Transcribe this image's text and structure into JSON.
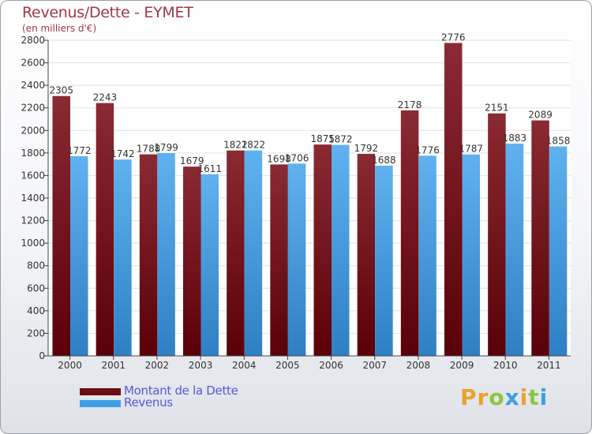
{
  "title": "Revenus/Dette - EYMET",
  "subtitle": "(en milliers d'€)",
  "logo": {
    "text": "Proxiti",
    "letter_colors": [
      "#e8a230",
      "#e8a230",
      "#8cc63f",
      "#3aa0e0",
      "#e8a230",
      "#8cc63f",
      "#3aa0e0"
    ]
  },
  "colors": {
    "dette": "#7a1e26",
    "revenus": "#4da6e8",
    "title": "#a03848",
    "legend_text": "#5559d8"
  },
  "legend": {
    "items": [
      {
        "label": "Montant de la Dette",
        "color": "#6b0d12"
      },
      {
        "label": "Revenus",
        "color": "#3f9fe3"
      }
    ]
  },
  "chart_data": {
    "type": "bar",
    "categories": [
      "2000",
      "2001",
      "2002",
      "2003",
      "2004",
      "2005",
      "2006",
      "2007",
      "2008",
      "2009",
      "2010",
      "2011"
    ],
    "series": [
      {
        "name": "Montant de la Dette",
        "values": [
          2305,
          2243,
          1788,
          1679,
          1822,
          1698,
          1875,
          1792,
          2178,
          2776,
          2151,
          2089
        ]
      },
      {
        "name": "Revenus",
        "values": [
          1772,
          1742,
          1799,
          1611,
          1822,
          1706,
          1872,
          1688,
          1776,
          1787,
          1883,
          1858
        ]
      }
    ],
    "yticks": [
      "0",
      "200",
      "400",
      "600",
      "800",
      "1000",
      "1200",
      "1400",
      "1600",
      "1800",
      "2000",
      "2200",
      "2400",
      "2600",
      "2800"
    ],
    "ylim": [
      0,
      2800
    ],
    "grid": true
  }
}
